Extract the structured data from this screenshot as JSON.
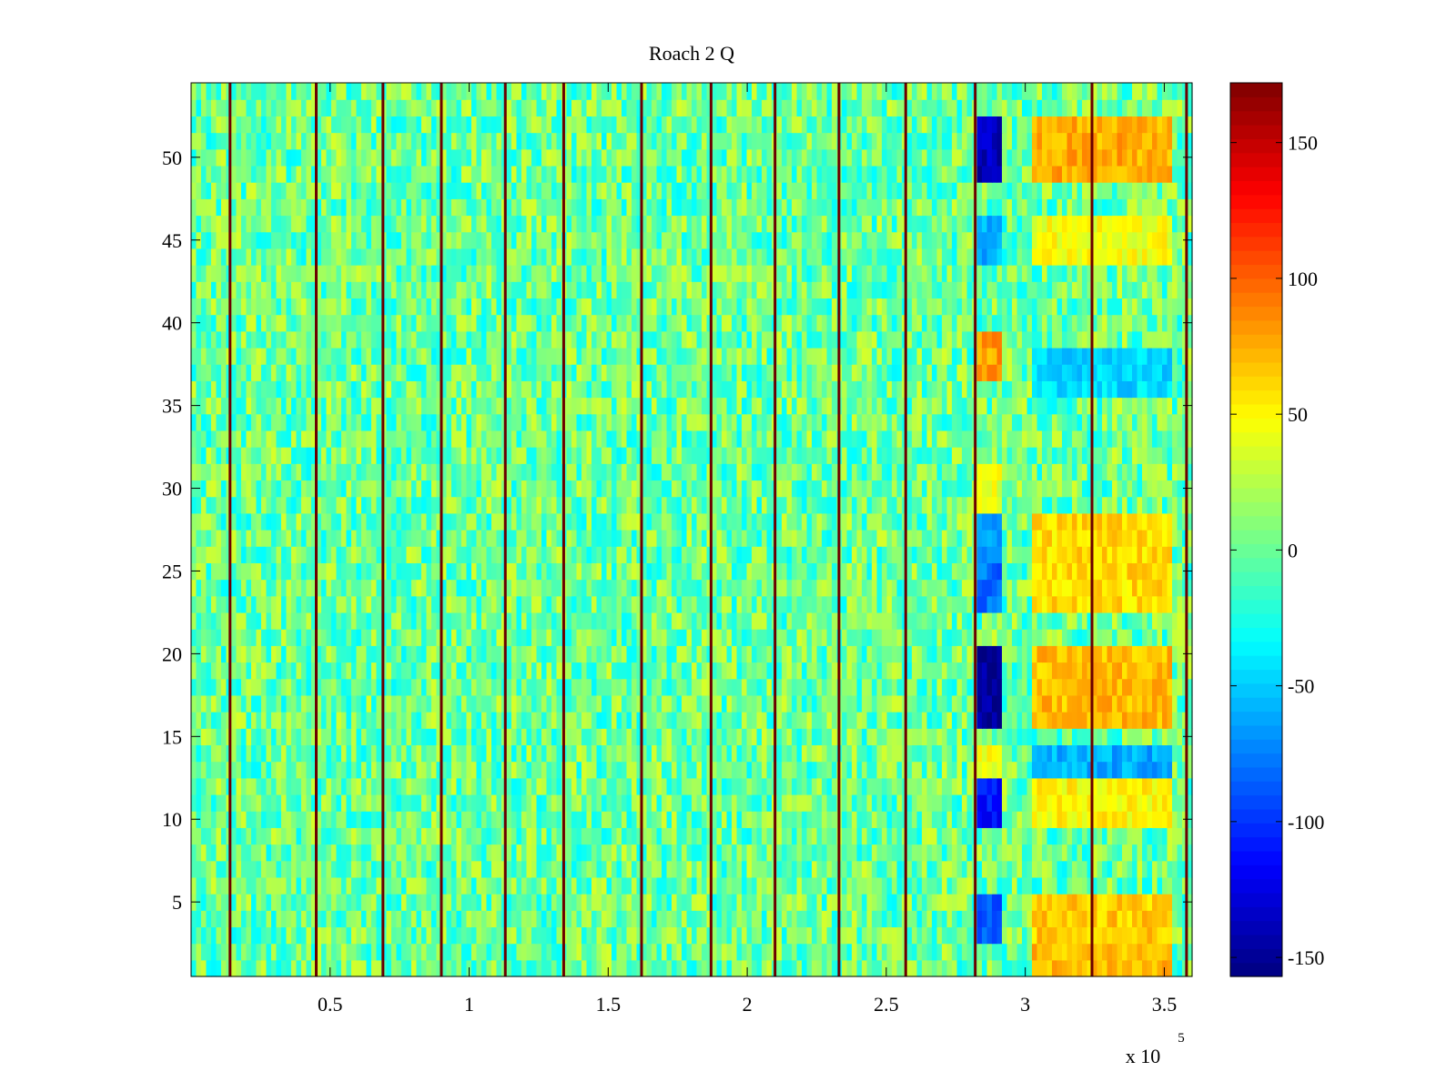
{
  "chart_data": {
    "type": "heatmap",
    "title": "Roach 2 Q",
    "xlabel": "",
    "ylabel": "",
    "xlim": [
      0,
      360000
    ],
    "ylim": [
      0.5,
      54.5
    ],
    "x_ticks": [
      50000,
      100000,
      150000,
      200000,
      250000,
      300000,
      350000
    ],
    "x_tick_labels": [
      "0.5",
      "1",
      "1.5",
      "2",
      "2.5",
      "3",
      "3.5"
    ],
    "x_multiplier": {
      "base": "x 10",
      "exponent": "5"
    },
    "y_ticks": [
      5,
      10,
      15,
      20,
      25,
      30,
      35,
      40,
      45,
      50
    ],
    "y_tick_labels": [
      "5",
      "10",
      "15",
      "20",
      "25",
      "30",
      "35",
      "40",
      "45",
      "50"
    ],
    "colorbar": {
      "range": [
        -157,
        172
      ],
      "ticks": [
        150,
        100,
        50,
        0,
        -50,
        -100,
        -150
      ],
      "tick_labels": [
        "150",
        "100",
        "50",
        "0",
        "-50",
        "-100",
        "-150"
      ],
      "colormap": "jet"
    },
    "rows": 54,
    "background_noise": {
      "mean": 0,
      "range": [
        -40,
        40
      ]
    },
    "dark_vertical_lines_x": [
      14000,
      45000,
      69000,
      90000,
      113000,
      134000,
      162000,
      187000,
      210000,
      233000,
      257000,
      282000,
      324000,
      358000
    ],
    "anomalies": [
      {
        "x_range": [
          282000,
          292000
        ],
        "y_range": [
          49,
          52
        ],
        "value": -140
      },
      {
        "x_range": [
          282000,
          292000
        ],
        "y_range": [
          44,
          46
        ],
        "value": -60
      },
      {
        "x_range": [
          282000,
          292000
        ],
        "y_range": [
          37,
          39
        ],
        "value": 80
      },
      {
        "x_range": [
          282000,
          292000
        ],
        "y_range": [
          29,
          31
        ],
        "value": 40
      },
      {
        "x_range": [
          282000,
          292000
        ],
        "y_range": [
          26,
          28
        ],
        "value": -70
      },
      {
        "x_range": [
          282000,
          292000
        ],
        "y_range": [
          23,
          26
        ],
        "value": -80
      },
      {
        "x_range": [
          282000,
          292000
        ],
        "y_range": [
          16,
          20
        ],
        "value": -150
      },
      {
        "x_range": [
          282000,
          292000
        ],
        "y_range": [
          13,
          14
        ],
        "value": 45
      },
      {
        "x_range": [
          282000,
          292000
        ],
        "y_range": [
          10,
          12
        ],
        "value": -110
      },
      {
        "x_range": [
          282000,
          292000
        ],
        "y_range": [
          3,
          5
        ],
        "value": -90
      },
      {
        "x_range": [
          302000,
          352000
        ],
        "y_range": [
          49,
          52
        ],
        "value": 75
      },
      {
        "x_range": [
          302000,
          352000
        ],
        "y_range": [
          44,
          46
        ],
        "value": 45
      },
      {
        "x_range": [
          302000,
          352000
        ],
        "y_range": [
          36,
          38
        ],
        "value": -45
      },
      {
        "x_range": [
          302000,
          352000
        ],
        "y_range": [
          23,
          28
        ],
        "value": 60
      },
      {
        "x_range": [
          302000,
          352000
        ],
        "y_range": [
          16,
          20
        ],
        "value": 70
      },
      {
        "x_range": [
          302000,
          352000
        ],
        "y_range": [
          13,
          14
        ],
        "value": -60
      },
      {
        "x_range": [
          302000,
          352000
        ],
        "y_range": [
          10,
          12
        ],
        "value": 50
      },
      {
        "x_range": [
          302000,
          352000
        ],
        "y_range": [
          3,
          5
        ],
        "value": 65
      },
      {
        "x_range": [
          302000,
          352000
        ],
        "y_range": [
          1,
          2
        ],
        "value": 70
      }
    ]
  }
}
